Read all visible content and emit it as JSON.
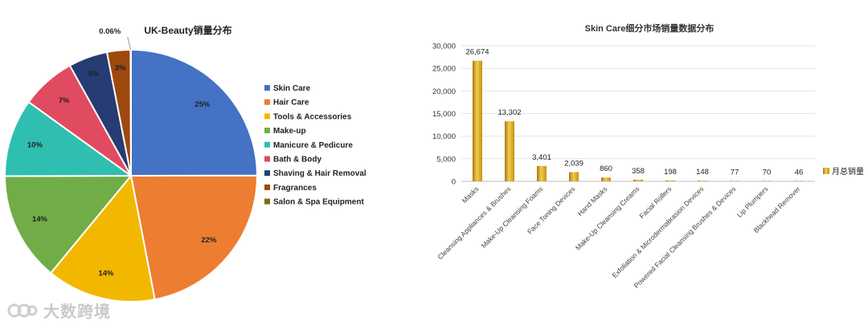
{
  "chart_data": [
    {
      "type": "pie",
      "title": "UK-Beauty销量分布",
      "categories": [
        "Skin Care",
        "Hair Care",
        "Tools & Accessories",
        "Make-up",
        "Manicure & Pedicure",
        "Bath & Body",
        "Shaving & Hair Removal",
        "Fragrances",
        "Salon & Spa Equipment"
      ],
      "values": [
        25,
        22,
        14,
        14,
        10,
        7,
        5,
        3,
        0.06
      ],
      "labels": [
        "25%",
        "22%",
        "14%",
        "14%",
        "10%",
        "7%",
        "5%",
        "3%",
        "0.06%"
      ],
      "colors": [
        "#4472C4",
        "#ED7D31",
        "#F2B800",
        "#70AD47",
        "#2FBFB0",
        "#E04B61",
        "#263C73",
        "#9E480E",
        "#7E6B16"
      ],
      "legend_position": "right"
    },
    {
      "type": "bar",
      "title": "Skin Care细分市场销量数据分布",
      "categories": [
        "Masks",
        "Cleansing Appliances & Brushes",
        "Make-Up Cleansing Foams",
        "Face Toning Devices",
        "Hand Masks",
        "Make-Up Cleansing Creams",
        "Facial Rollers",
        "Exfoliation & Microdermabrasion Devices",
        "Powered Facial Cleansing Brushes & Devices",
        "Lip Plumpers",
        "Blackhead Remover"
      ],
      "series": [
        {
          "name": "月总销量",
          "values": [
            26674,
            13302,
            3401,
            2039,
            860,
            358,
            198,
            148,
            77,
            70,
            46
          ]
        }
      ],
      "value_labels": [
        "26,674",
        "13,302",
        "3,401",
        "2,039",
        "860",
        "358",
        "198",
        "148",
        "77",
        "70",
        "46"
      ],
      "ylim": [
        0,
        30000
      ],
      "yticks": [
        0,
        5000,
        10000,
        15000,
        20000,
        25000,
        30000
      ],
      "ytick_labels": [
        "0",
        "5,000",
        "10,000",
        "15,000",
        "20,000",
        "25,000",
        "30,000"
      ],
      "xlabel": "",
      "ylabel": "",
      "grid": true,
      "legend_position": "right",
      "color": "#D9A520"
    }
  ],
  "watermark": {
    "text": "大数跨境"
  }
}
